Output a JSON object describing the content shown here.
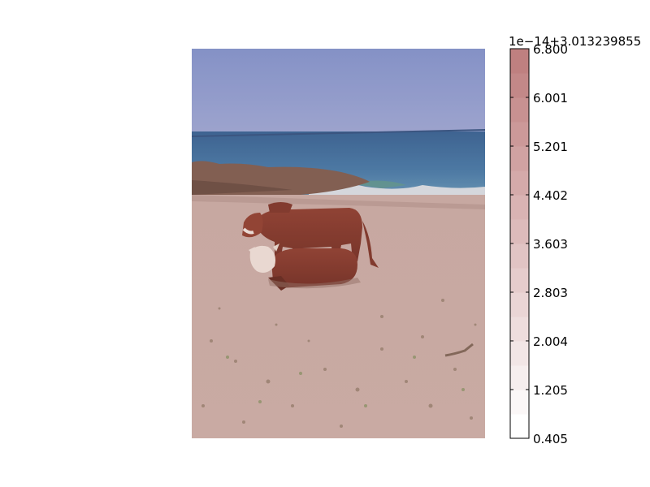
{
  "chart_data": {
    "type": "heatmap",
    "title": "",
    "xlabel": "",
    "ylabel": "",
    "image": {
      "subject": "beach photograph",
      "sky_color": "#8a9cd3",
      "sea_color": "#33689a",
      "sand_color": "#c8aca3"
    },
    "colorbar": {
      "offset_text": "1e−14+3.013239855",
      "ticks": [
        "0.405",
        "1.205",
        "2.004",
        "2.803",
        "3.603",
        "4.402",
        "5.201",
        "6.001",
        "6.800"
      ],
      "tick_values": [
        0.405,
        1.205,
        2.004,
        2.803,
        3.603,
        4.402,
        5.201,
        6.001,
        6.8
      ],
      "range": [
        0.405,
        6.8
      ],
      "levels": 16,
      "colormap_low": "#ffffff",
      "colormap_high": "#bf8080"
    }
  }
}
